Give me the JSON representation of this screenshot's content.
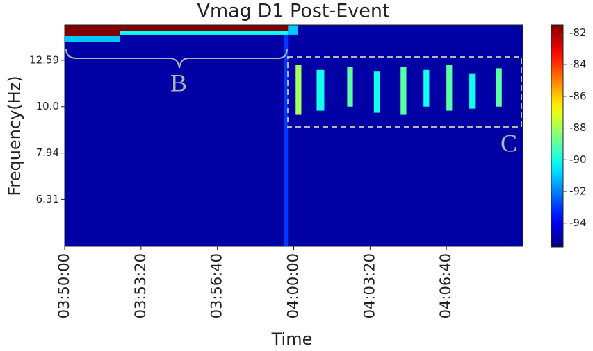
{
  "chart_data": {
    "type": "heatmap",
    "title": "Vmag D1 Post-Event",
    "x_label": "Time",
    "y_label": "Frequency(Hz)",
    "yscale": "log",
    "xlim": [
      13800,
      15000
    ],
    "xticks": [
      {
        "value": 13800,
        "label": "03:50:00"
      },
      {
        "value": 14000,
        "label": "03:53:20"
      },
      {
        "value": 14200,
        "label": "03:56:40"
      },
      {
        "value": 14400,
        "label": "04:00:00"
      },
      {
        "value": 14600,
        "label": "04:03:20"
      },
      {
        "value": 14800,
        "label": "04:06:40"
      }
    ],
    "ylim": [
      5,
      15
    ],
    "yticks": [
      6.31,
      7.94,
      {
        "value": 10,
        "label": "10.0"
      },
      12.59
    ],
    "clim": [
      -95.5,
      -81.5
    ],
    "cticks": [
      -94,
      -92,
      -90,
      -88,
      -86,
      -84,
      -82
    ],
    "colormap": "jet",
    "patches": [
      {
        "x": [
          13800,
          15000
        ],
        "y": [
          5,
          15
        ],
        "value": -95
      },
      {
        "x": [
          14375,
          14385
        ],
        "y": [
          5,
          15
        ],
        "value": -93
      },
      {
        "x": [
          13800,
          13945
        ],
        "y": [
          13.8,
          14.2
        ],
        "value": -91
      },
      {
        "x": [
          13800,
          13945
        ],
        "y": [
          14.2,
          15
        ],
        "value": -81.5
      },
      {
        "x": [
          13945,
          14385
        ],
        "y": [
          14.3,
          14.6
        ],
        "value": -90
      },
      {
        "x": [
          13945,
          14385
        ],
        "y": [
          14.6,
          15
        ],
        "value": -81.5
      },
      {
        "x": [
          14385,
          14410
        ],
        "y": [
          14.3,
          15
        ],
        "value": -91
      },
      {
        "x": [
          14405,
          14420
        ],
        "y": [
          9.6,
          12.3
        ],
        "value": -88
      },
      {
        "x": [
          14460,
          14480
        ],
        "y": [
          9.8,
          12.0
        ],
        "value": -90
      },
      {
        "x": [
          14540,
          14555
        ],
        "y": [
          10.0,
          12.2
        ],
        "value": -89
      },
      {
        "x": [
          14610,
          14625
        ],
        "y": [
          9.7,
          11.9
        ],
        "value": -90
      },
      {
        "x": [
          14680,
          14695
        ],
        "y": [
          9.6,
          12.2
        ],
        "value": -89
      },
      {
        "x": [
          14740,
          14755
        ],
        "y": [
          10.0,
          12.0
        ],
        "value": -90
      },
      {
        "x": [
          14800,
          14815
        ],
        "y": [
          9.8,
          12.3
        ],
        "value": -89
      },
      {
        "x": [
          14860,
          14875
        ],
        "y": [
          9.9,
          11.8
        ],
        "value": -90
      },
      {
        "x": [
          14930,
          14945
        ],
        "y": [
          10.0,
          12.1
        ],
        "value": -89
      }
    ],
    "annotations": [
      "B",
      "C"
    ]
  }
}
